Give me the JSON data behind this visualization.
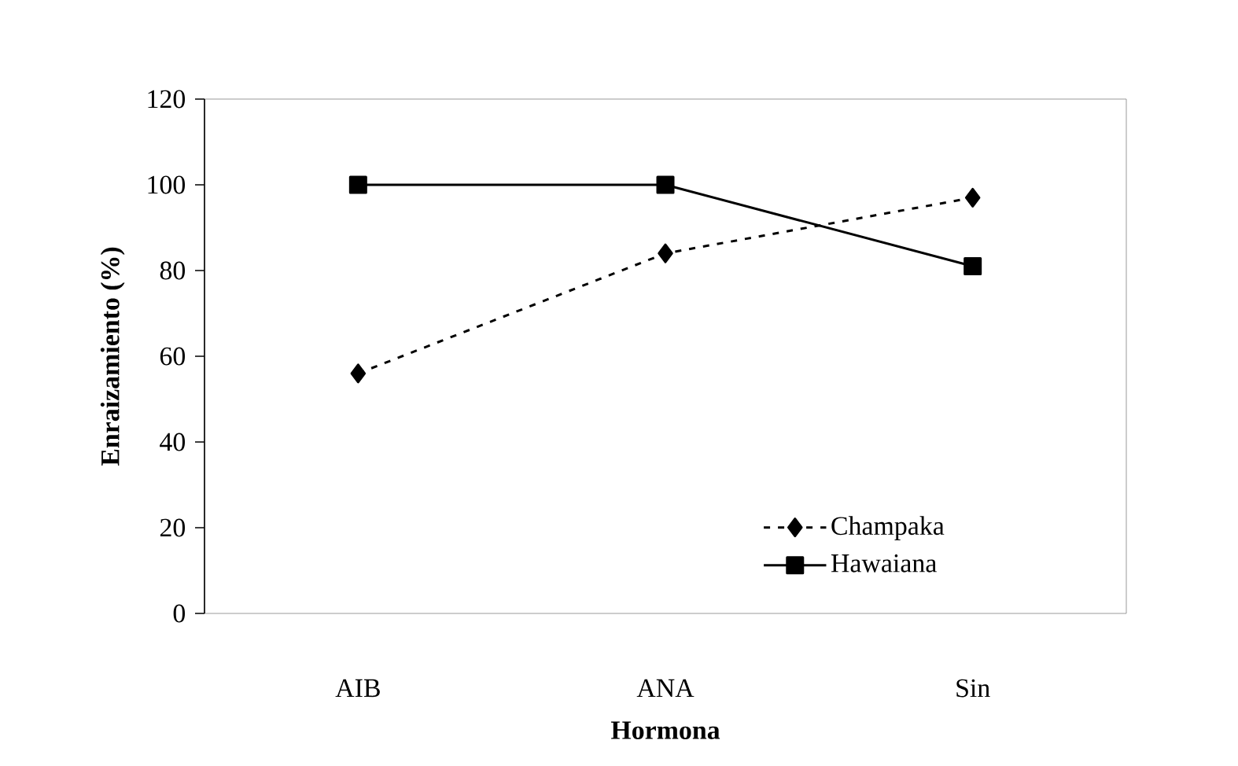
{
  "chart_data": {
    "type": "line",
    "xlabel": "Hormona",
    "ylabel": "Enraizamiento (%)",
    "categories": [
      "AIB",
      "ANA",
      "Sin"
    ],
    "series": [
      {
        "name": "Champaka",
        "color": "#000000",
        "values": [
          56,
          84,
          97
        ],
        "marker": "diamond",
        "line_style": "dotted"
      },
      {
        "name": "Hawaiana",
        "color": "#000000",
        "values": [
          100,
          100,
          81
        ],
        "marker": "square",
        "line_style": "solid"
      }
    ],
    "ylim": [
      0,
      120
    ],
    "yticks": [
      0,
      20,
      40,
      60,
      80,
      100,
      120
    ],
    "legend": "bottom right"
  }
}
